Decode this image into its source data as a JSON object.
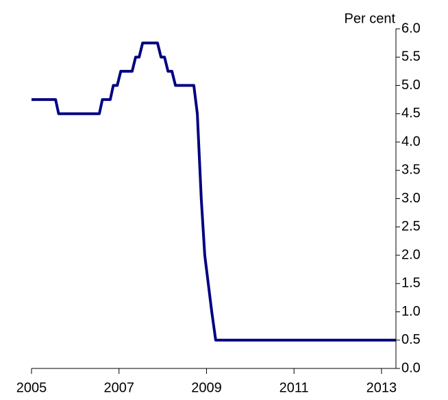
{
  "chart_data": {
    "type": "line",
    "y_label": "Per cent",
    "x": [
      2005.0,
      2005.55,
      2005.62,
      2006.55,
      2006.62,
      2006.8,
      2006.87,
      2006.96,
      2007.04,
      2007.3,
      2007.38,
      2007.46,
      2007.54,
      2007.88,
      2007.96,
      2008.04,
      2008.12,
      2008.21,
      2008.29,
      2008.71,
      2008.79,
      2008.88,
      2008.96,
      2009.04,
      2009.12,
      2009.21,
      2013.33
    ],
    "series": [
      {
        "color": "#000080",
        "values": [
          4.75,
          4.75,
          4.5,
          4.5,
          4.75,
          4.75,
          5.0,
          5.0,
          5.25,
          5.25,
          5.5,
          5.5,
          5.75,
          5.75,
          5.5,
          5.5,
          5.25,
          5.25,
          5.0,
          5.0,
          4.5,
          3.0,
          2.0,
          1.5,
          1.0,
          0.5,
          0.5
        ]
      }
    ],
    "xlim": [
      2005,
      2013.33
    ],
    "xticks": [
      2005,
      2007,
      2009,
      2011,
      2013
    ],
    "ylim": [
      0,
      6
    ],
    "yticks": [
      {
        "value": 0,
        "label": "0.0"
      },
      {
        "value": 0.5,
        "label": "0.5"
      },
      {
        "value": 1,
        "label": "1.0"
      },
      {
        "value": 1.5,
        "label": "1.5"
      },
      {
        "value": 2,
        "label": "2.0"
      },
      {
        "value": 2.5,
        "label": "2.5"
      },
      {
        "value": 3,
        "label": "3.0"
      },
      {
        "value": 3.5,
        "label": "3.5"
      },
      {
        "value": 4,
        "label": "4.0"
      },
      {
        "value": 4.5,
        "label": "4.5"
      },
      {
        "value": 5,
        "label": "5.0"
      },
      {
        "value": 5.5,
        "label": "5.5"
      },
      {
        "value": 6,
        "label": "6.0"
      }
    ],
    "y_axis_side": "right",
    "grid": false
  }
}
